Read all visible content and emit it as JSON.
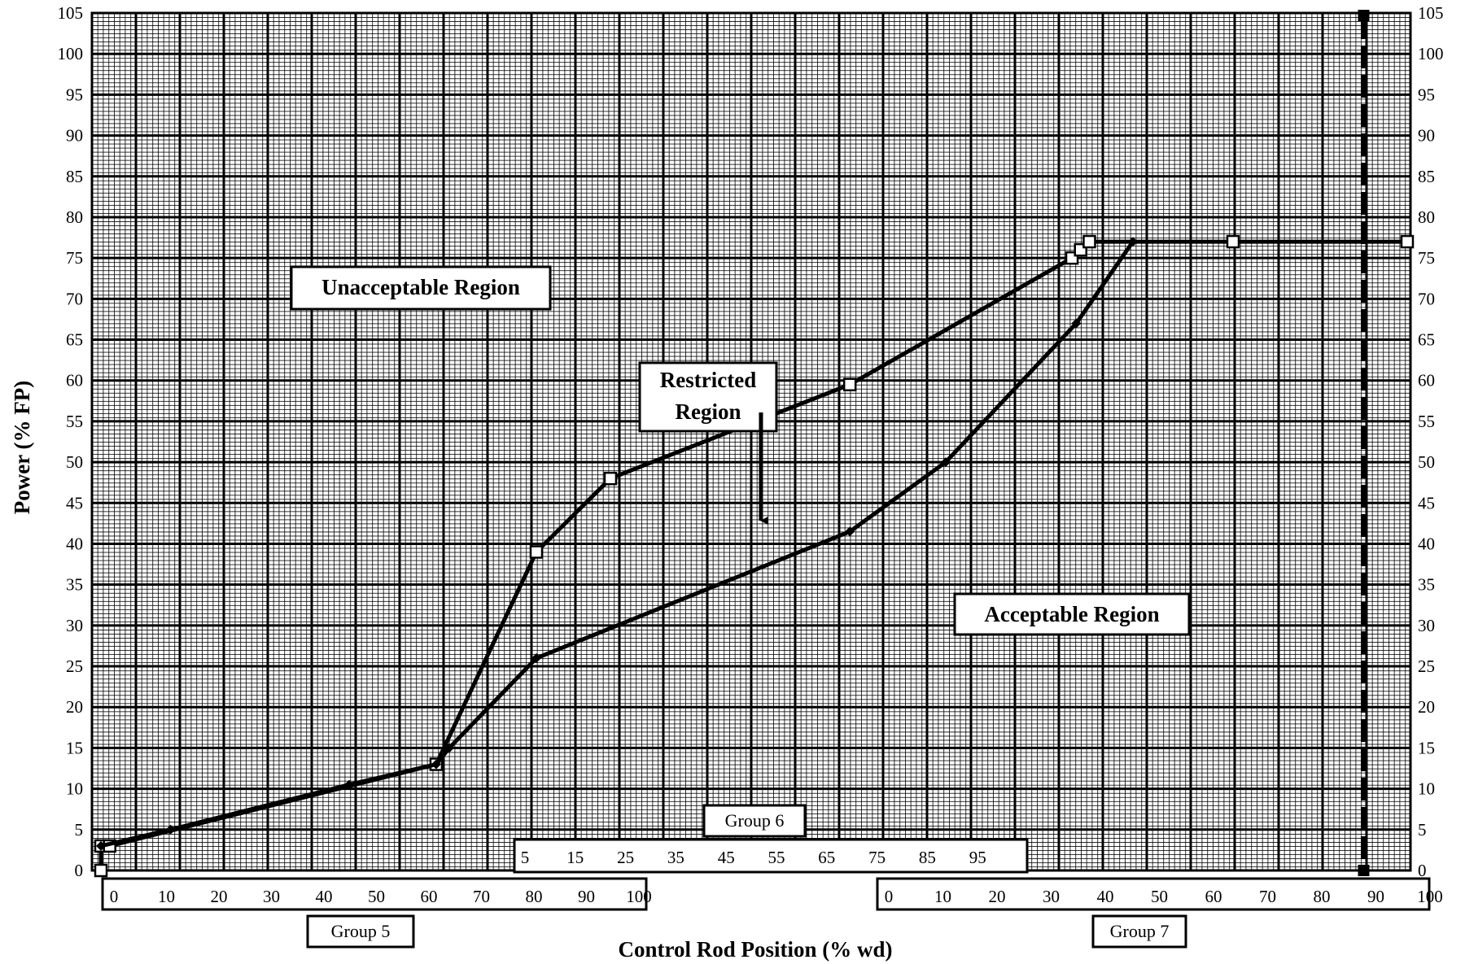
{
  "chart_data": {
    "type": "line",
    "title": "",
    "xlabel": "Control Rod Position (% wd)",
    "ylabel": "Power (% FP)",
    "x_axis_note": "x coordinate = overall rod withdrawal 0-300 (Group 5: 0-100, Group 6: 25-100 offset +75, Group 7: 0-100 offset +200)",
    "ylim": [
      0,
      105
    ],
    "yticks": [
      0,
      5,
      10,
      15,
      20,
      25,
      30,
      35,
      40,
      45,
      50,
      55,
      60,
      65,
      70,
      75,
      80,
      85,
      90,
      95,
      100,
      105
    ],
    "y_right_ticks": [
      0,
      5,
      10,
      15,
      20,
      25,
      30,
      35,
      40,
      45,
      50,
      55,
      60,
      65,
      70,
      75,
      80,
      85,
      90,
      95,
      100,
      105
    ],
    "grid": true,
    "groups": [
      {
        "name": "Group 5",
        "ticks": [
          "0",
          "10",
          "20",
          "30",
          "40",
          "50",
          "60",
          "70",
          "80",
          "90",
          "100"
        ]
      },
      {
        "name": "Group 6",
        "ticks": [
          "5",
          "15",
          "25",
          "35",
          "45",
          "55",
          "65",
          "75",
          "85",
          "95"
        ]
      },
      {
        "name": "Group 7",
        "ticks": [
          "0",
          "10",
          "20",
          "30",
          "40",
          "50",
          "60",
          "70",
          "80",
          "90",
          "100"
        ]
      }
    ],
    "series": [
      {
        "values": [
          [
            0,
            0
          ],
          [
            0,
            3
          ],
          [
            2,
            3
          ],
          [
            77,
            13
          ],
          [
            100,
            39
          ],
          [
            117,
            48
          ],
          [
            172,
            59.5
          ],
          [
            223,
            75
          ],
          [
            225,
            76
          ],
          [
            227,
            77
          ],
          [
            260,
            77
          ],
          [
            300,
            77
          ]
        ]
      },
      {
        "values": [
          [
            0,
            3
          ],
          [
            16,
            5
          ],
          [
            57,
            10.5
          ],
          [
            77,
            13
          ],
          [
            80,
            15
          ],
          [
            100,
            26
          ],
          [
            172,
            41.5
          ],
          [
            194,
            50
          ],
          [
            224,
            67
          ],
          [
            237,
            77
          ]
        ]
      }
    ],
    "vertical_line_x": 290,
    "regions": {
      "unacceptable": "Unacceptable Region",
      "restricted": [
        "Restricted",
        "Region"
      ],
      "acceptable": "Acceptable Region"
    }
  }
}
